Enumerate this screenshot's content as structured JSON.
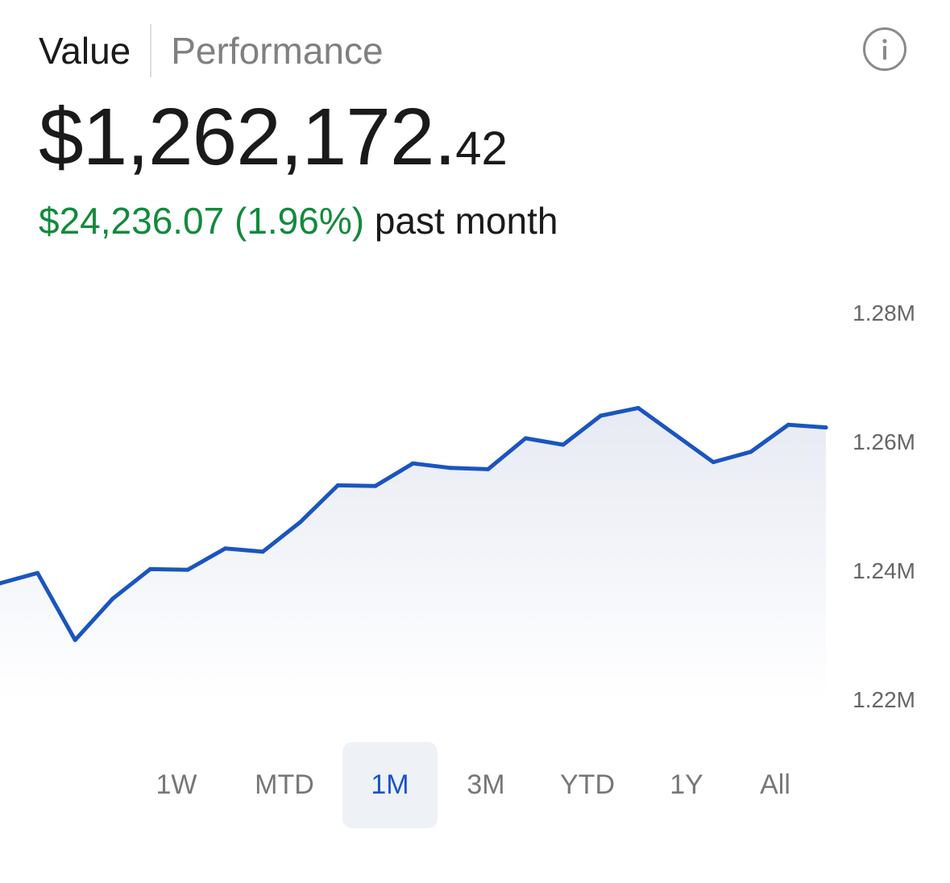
{
  "tabs": [
    {
      "label": "Value",
      "active": true
    },
    {
      "label": "Performance",
      "active": false
    }
  ],
  "info_icon": "info-circle-icon",
  "balance": {
    "whole": "$1,262,172.",
    "cents": "42"
  },
  "change": {
    "amount": "$24,236.07 (1.96%)",
    "period": "past month"
  },
  "colors": {
    "positive": "#128a3c",
    "line": "#1a55c0",
    "selected_bg": "#eef1f6"
  },
  "chart_data": {
    "type": "area",
    "y_ticks": [
      "1.28M",
      "1.26M",
      "1.24M",
      "1.22M"
    ],
    "ylim": [
      1220000,
      1280000
    ],
    "values": [
      1238000,
      1239600,
      1229200,
      1235600,
      1240200,
      1240100,
      1243400,
      1242900,
      1247500,
      1253200,
      1253100,
      1256600,
      1255900,
      1255700,
      1260500,
      1259500,
      1264000,
      1265200,
      1261000,
      1256800,
      1258400,
      1262600,
      1262172
    ]
  },
  "ranges": [
    {
      "label": "1W",
      "selected": false
    },
    {
      "label": "MTD",
      "selected": false
    },
    {
      "label": "1M",
      "selected": true
    },
    {
      "label": "3M",
      "selected": false
    },
    {
      "label": "YTD",
      "selected": false
    },
    {
      "label": "1Y",
      "selected": false
    },
    {
      "label": "All",
      "selected": false
    }
  ]
}
